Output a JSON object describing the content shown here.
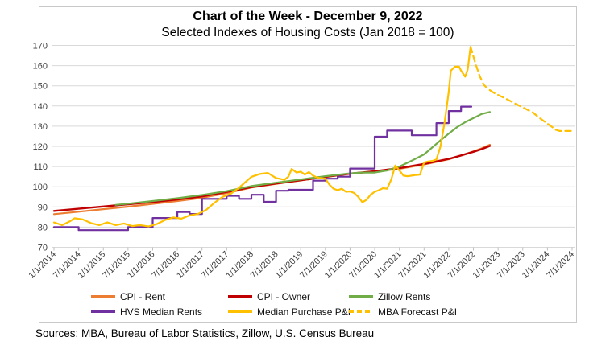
{
  "header": {
    "title": "Chart of the Week - December 9, 2022",
    "subtitle": "Selected Indexes of Housing Costs (Jan 2018 = 100)"
  },
  "source_note": "Sources: MBA, Bureau of Labor Statistics, Zillow, U.S. Census Bureau",
  "colors": {
    "gridline": "#d9d9d9",
    "tick": "#bfbfbf",
    "axis_text": "#404040",
    "frame_border": "#c8c8c8"
  },
  "chart_data": {
    "type": "line",
    "title": "Chart of the Week - December 9, 2022",
    "subtitle": "Selected Indexes of Housing Costs (Jan 2018 = 100)",
    "grid": "horizontal",
    "legend_position": "bottom",
    "x_axis": {
      "tick_labels": [
        "1/1/2014",
        "7/1/2014",
        "1/1/2015",
        "7/1/2015",
        "1/1/2016",
        "7/1/2016",
        "1/1/2017",
        "7/1/2017",
        "1/1/2018",
        "7/1/2018",
        "1/1/2019",
        "7/1/2019",
        "1/1/2020",
        "7/1/2020",
        "1/1/2021",
        "7/1/2021",
        "1/1/2022",
        "7/1/2022",
        "1/1/2023",
        "7/1/2023",
        "1/1/2024",
        "7/1/2024"
      ],
      "months_per_tick": 6,
      "domain_months": [
        0,
        126
      ]
    },
    "y_axis": {
      "min": 70,
      "max": 170,
      "step": 10,
      "tick_labels": [
        "70",
        "80",
        "90",
        "100",
        "110",
        "120",
        "130",
        "140",
        "150",
        "160",
        "170"
      ]
    },
    "series": [
      {
        "id": "cpi-rent",
        "name": "CPI - Rent",
        "color": "#ED7D31",
        "style": "solid",
        "width": 2.2,
        "points": [
          [
            0,
            86.4
          ],
          [
            6,
            87.6
          ],
          [
            12,
            88.9
          ],
          [
            18,
            90.1
          ],
          [
            24,
            91.5
          ],
          [
            30,
            92.9
          ],
          [
            36,
            94.5
          ],
          [
            42,
            96.8
          ],
          [
            48,
            99.6
          ],
          [
            54,
            101.4
          ],
          [
            60,
            103.1
          ],
          [
            66,
            104.8
          ],
          [
            72,
            106.4
          ],
          [
            78,
            107.5
          ],
          [
            84,
            108.9
          ],
          [
            90,
            111.0
          ],
          [
            96,
            113.6
          ],
          [
            99,
            115.4
          ],
          [
            102,
            117.5
          ],
          [
            104,
            119.0
          ],
          [
            106,
            120.8
          ]
        ]
      },
      {
        "id": "cpi-owner",
        "name": "CPI - Owner",
        "color": "#C00000",
        "style": "solid",
        "width": 2.4,
        "points": [
          [
            0,
            88.0
          ],
          [
            6,
            89.1
          ],
          [
            12,
            90.2
          ],
          [
            18,
            91.3
          ],
          [
            24,
            92.4
          ],
          [
            30,
            93.7
          ],
          [
            36,
            95.2
          ],
          [
            42,
            97.4
          ],
          [
            48,
            99.8
          ],
          [
            54,
            101.6
          ],
          [
            60,
            103.2
          ],
          [
            66,
            104.9
          ],
          [
            72,
            106.5
          ],
          [
            78,
            107.7
          ],
          [
            84,
            109.2
          ],
          [
            90,
            111.3
          ],
          [
            96,
            113.8
          ],
          [
            99,
            115.5
          ],
          [
            102,
            117.3
          ],
          [
            104,
            118.6
          ],
          [
            106,
            120.2
          ]
        ]
      },
      {
        "id": "zillow-rents",
        "name": "Zillow Rents",
        "color": "#70AD47",
        "style": "solid",
        "width": 2.2,
        "points": [
          [
            15,
            91.0
          ],
          [
            18,
            91.6
          ],
          [
            24,
            92.9
          ],
          [
            30,
            94.3
          ],
          [
            36,
            95.9
          ],
          [
            42,
            97.8
          ],
          [
            48,
            100.3
          ],
          [
            54,
            102.0
          ],
          [
            60,
            103.6
          ],
          [
            66,
            105.2
          ],
          [
            72,
            106.6
          ],
          [
            75,
            107.0
          ],
          [
            78,
            107.0
          ],
          [
            81,
            108.0
          ],
          [
            84,
            110.0
          ],
          [
            87,
            112.9
          ],
          [
            90,
            116.0
          ],
          [
            92,
            119.5
          ],
          [
            94,
            123.0
          ],
          [
            96,
            126.3
          ],
          [
            98,
            129.5
          ],
          [
            100,
            132.0
          ],
          [
            102,
            134.0
          ],
          [
            104,
            136.0
          ],
          [
            106,
            137.0
          ]
        ]
      },
      {
        "id": "hvs-median-rents",
        "name": "HVS Median Rents",
        "color": "#7030A0",
        "style": "solid",
        "width": 2.2,
        "points": [
          [
            0,
            80
          ],
          [
            6,
            80
          ],
          [
            6,
            78.5
          ],
          [
            18,
            78.5
          ],
          [
            18,
            80
          ],
          [
            24,
            80
          ],
          [
            24,
            84.5
          ],
          [
            30,
            84.5
          ],
          [
            30,
            87.5
          ],
          [
            33,
            87.5
          ],
          [
            33,
            86.5
          ],
          [
            36,
            86.5
          ],
          [
            36,
            94
          ],
          [
            42,
            94
          ],
          [
            42,
            95.5
          ],
          [
            45,
            95.5
          ],
          [
            45,
            94
          ],
          [
            48,
            94
          ],
          [
            48,
            96
          ],
          [
            51,
            96
          ],
          [
            51,
            92.5
          ],
          [
            54,
            92.5
          ],
          [
            54,
            98
          ],
          [
            57,
            98
          ],
          [
            57,
            98.5
          ],
          [
            63,
            98.5
          ],
          [
            63,
            103
          ],
          [
            66,
            103
          ],
          [
            66,
            104
          ],
          [
            69,
            104
          ],
          [
            69,
            105
          ],
          [
            72,
            105
          ],
          [
            72,
            109
          ],
          [
            78,
            109
          ],
          [
            78,
            124.8
          ],
          [
            81,
            124.8
          ],
          [
            81,
            127.8
          ],
          [
            87,
            127.8
          ],
          [
            87,
            125.5
          ],
          [
            93,
            125.5
          ],
          [
            93,
            131.5
          ],
          [
            96,
            131.5
          ],
          [
            96,
            137.5
          ],
          [
            99,
            137.5
          ],
          [
            99,
            139.7
          ],
          [
            101.5,
            139.7
          ]
        ]
      },
      {
        "id": "median-purchase-pi",
        "name": "Median Purchase P&I",
        "color": "#FFC000",
        "style": "solid",
        "width": 2.2,
        "points": [
          [
            0,
            82.3
          ],
          [
            2,
            81.0
          ],
          [
            4,
            83.0
          ],
          [
            5,
            84.4
          ],
          [
            7,
            83.8
          ],
          [
            9,
            82.0
          ],
          [
            11,
            81.0
          ],
          [
            13,
            82.3
          ],
          [
            15,
            81.0
          ],
          [
            17,
            81.8
          ],
          [
            19,
            80.5
          ],
          [
            21,
            81.0
          ],
          [
            23,
            80.3
          ],
          [
            25,
            81.5
          ],
          [
            27,
            83.5
          ],
          [
            29,
            84.8
          ],
          [
            31,
            84.2
          ],
          [
            33,
            85.8
          ],
          [
            35,
            86.5
          ],
          [
            37,
            88.5
          ],
          [
            39,
            92.0
          ],
          [
            41,
            95.0
          ],
          [
            43,
            96.5
          ],
          [
            45,
            99.5
          ],
          [
            48,
            104.9
          ],
          [
            50,
            106.3
          ],
          [
            52,
            106.8
          ],
          [
            54,
            104.3
          ],
          [
            55,
            103.9
          ],
          [
            56,
            103.4
          ],
          [
            57,
            105.0
          ],
          [
            57.8,
            108.8
          ],
          [
            59,
            107.0
          ],
          [
            60,
            107.5
          ],
          [
            61,
            106.0
          ],
          [
            62,
            107.3
          ],
          [
            63,
            105.5
          ],
          [
            64,
            104.5
          ],
          [
            66,
            103.9
          ],
          [
            67,
            101.0
          ],
          [
            68,
            99.0
          ],
          [
            69,
            98.3
          ],
          [
            70,
            99.0
          ],
          [
            71,
            97.5
          ],
          [
            72,
            97.7
          ],
          [
            73,
            96.9
          ],
          [
            74,
            95.0
          ],
          [
            75,
            92.3
          ],
          [
            76,
            93.5
          ],
          [
            77,
            96.0
          ],
          [
            78,
            97.5
          ],
          [
            79,
            98.3
          ],
          [
            80,
            99.3
          ],
          [
            81,
            99.0
          ],
          [
            82,
            103.5
          ],
          [
            83,
            110.5
          ],
          [
            84,
            108.0
          ],
          [
            85,
            105.5
          ],
          [
            86,
            105.2
          ],
          [
            87,
            105.5
          ],
          [
            88,
            105.8
          ],
          [
            89,
            106.0
          ],
          [
            90,
            112.0
          ],
          [
            91,
            112.5
          ],
          [
            92,
            112.8
          ],
          [
            93,
            113.5
          ],
          [
            94,
            120.0
          ],
          [
            95,
            132.0
          ],
          [
            96,
            147.0
          ],
          [
            96.5,
            157.5
          ],
          [
            97.5,
            159.5
          ],
          [
            98.5,
            159.5
          ],
          [
            99,
            157.5
          ],
          [
            100,
            154.5
          ],
          [
            100.6,
            158.0
          ],
          [
            101.3,
            169.3
          ]
        ]
      },
      {
        "id": "mba-forecast-pi",
        "name": "MBA Forecast P&I",
        "color": "#FFC000",
        "style": "dashed",
        "width": 2.2,
        "points": [
          [
            101.3,
            169.3
          ],
          [
            102.5,
            161.0
          ],
          [
            103.5,
            155.0
          ],
          [
            104.5,
            150.5
          ],
          [
            105.5,
            148.5
          ],
          [
            107,
            146.5
          ],
          [
            108.5,
            145.0
          ],
          [
            110.5,
            143.0
          ],
          [
            112.5,
            140.8
          ],
          [
            114.5,
            138.8
          ],
          [
            116.5,
            136.7
          ],
          [
            118,
            134.2
          ],
          [
            119.5,
            132.0
          ],
          [
            121,
            129.8
          ],
          [
            122,
            128.2
          ],
          [
            123,
            127.6
          ],
          [
            124.5,
            127.6
          ],
          [
            125.8,
            127.6
          ]
        ]
      }
    ],
    "legend": {
      "rows": [
        [
          0,
          1,
          2
        ],
        [
          3,
          4,
          5
        ]
      ],
      "col_lefts": [
        113,
        283,
        433
      ],
      "row_tops": [
        361,
        380
      ]
    }
  }
}
